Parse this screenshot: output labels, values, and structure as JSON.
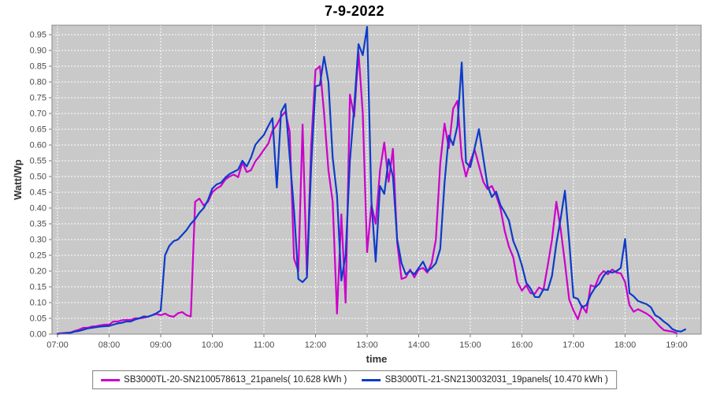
{
  "title": "7-9-2022",
  "colors": {
    "plot_bg": "#c9c9c9",
    "grid": "#ffffff",
    "border": "#888888",
    "tick": "#777777",
    "series1": "#cc00cc",
    "series2": "#0d3bc9"
  },
  "chart_data": {
    "type": "line",
    "title": "7-9-2022",
    "xlabel": "time",
    "ylabel": "Watt/Wp",
    "grid": "white dashed, both axes",
    "legend_position": "bottom",
    "ylim": [
      0,
      0.98
    ],
    "x_start_hour": 7,
    "x_step_minutes": 5,
    "x_ticks": [
      "07:00",
      "08:00",
      "09:00",
      "10:00",
      "11:00",
      "12:00",
      "13:00",
      "14:00",
      "15:00",
      "16:00",
      "17:00",
      "18:00",
      "19:00"
    ],
    "y_ticks": [
      "0.00",
      "0.05",
      "0.10",
      "0.15",
      "0.20",
      "0.25",
      "0.30",
      "0.35",
      "0.40",
      "0.45",
      "0.50",
      "0.55",
      "0.60",
      "0.65",
      "0.70",
      "0.75",
      "0.80",
      "0.85",
      "0.90",
      "0.95"
    ],
    "series": [
      {
        "name": "SB3000TL-20-SN2100578613_21panels( 10.628 kWh )",
        "color": "#cc00cc",
        "values": [
          0.002,
          0.003,
          0.004,
          0.005,
          0.01,
          0.014,
          0.02,
          0.02,
          0.024,
          0.025,
          0.028,
          0.03,
          0.03,
          0.04,
          0.04,
          0.044,
          0.045,
          0.045,
          0.05,
          0.05,
          0.052,
          0.055,
          0.06,
          0.064,
          0.06,
          0.065,
          0.058,
          0.055,
          0.066,
          0.07,
          0.06,
          0.056,
          0.42,
          0.43,
          0.408,
          0.42,
          0.45,
          0.462,
          0.47,
          0.49,
          0.5,
          0.506,
          0.498,
          0.545,
          0.514,
          0.52,
          0.548,
          0.565,
          0.585,
          0.604,
          0.645,
          0.664,
          0.69,
          0.706,
          0.64,
          0.24,
          0.2,
          0.665,
          0.185,
          0.6,
          0.838,
          0.85,
          0.7,
          0.52,
          0.42,
          0.065,
          0.38,
          0.1,
          0.76,
          0.69,
          0.895,
          0.7,
          0.26,
          0.41,
          0.35,
          0.52,
          0.608,
          0.483,
          0.588,
          0.29,
          0.175,
          0.18,
          0.205,
          0.18,
          0.205,
          0.21,
          0.195,
          0.225,
          0.3,
          0.54,
          0.668,
          0.59,
          0.715,
          0.74,
          0.56,
          0.5,
          0.548,
          0.585,
          0.535,
          0.484,
          0.46,
          0.47,
          0.44,
          0.4,
          0.327,
          0.277,
          0.243,
          0.165,
          0.138,
          0.155,
          0.13,
          0.128,
          0.148,
          0.14,
          0.218,
          0.3,
          0.42,
          0.335,
          0.226,
          0.11,
          0.075,
          0.047,
          0.09,
          0.068,
          0.155,
          0.15,
          0.185,
          0.2,
          0.19,
          0.205,
          0.195,
          0.193,
          0.165,
          0.092,
          0.071,
          0.079,
          0.072,
          0.065,
          0.055,
          0.04,
          0.025,
          0.013,
          0.01,
          0.008,
          0.003,
          null,
          null
        ]
      },
      {
        "name": "SB3000TL-21-SN2130032031_19panels( 10.470 kWh )",
        "color": "#0d3bc9",
        "values": [
          0.0,
          0.002,
          0.003,
          0.004,
          0.008,
          0.01,
          0.014,
          0.018,
          0.02,
          0.022,
          0.024,
          0.025,
          0.026,
          0.03,
          0.034,
          0.036,
          0.04,
          0.04,
          0.046,
          0.05,
          0.056,
          0.055,
          0.06,
          0.066,
          0.075,
          0.25,
          0.28,
          0.295,
          0.3,
          0.315,
          0.33,
          0.35,
          0.365,
          0.385,
          0.4,
          0.425,
          0.462,
          0.475,
          0.48,
          0.496,
          0.508,
          0.515,
          0.522,
          0.55,
          0.532,
          0.56,
          0.6,
          0.617,
          0.632,
          0.66,
          0.685,
          0.465,
          0.705,
          0.73,
          0.56,
          0.395,
          0.175,
          0.165,
          0.18,
          0.53,
          0.786,
          0.79,
          0.88,
          0.8,
          0.56,
          0.44,
          0.17,
          0.25,
          0.55,
          0.72,
          0.92,
          0.885,
          0.975,
          0.42,
          0.23,
          0.47,
          0.445,
          0.555,
          0.5,
          0.3,
          0.225,
          0.19,
          0.2,
          0.19,
          0.21,
          0.23,
          0.2,
          0.21,
          0.225,
          0.27,
          0.48,
          0.63,
          0.6,
          0.66,
          0.862,
          0.545,
          0.53,
          0.59,
          0.65,
          0.56,
          0.472,
          0.435,
          0.452,
          0.41,
          0.386,
          0.36,
          0.295,
          0.262,
          0.218,
          0.163,
          0.145,
          0.118,
          0.117,
          0.142,
          0.14,
          0.185,
          0.286,
          0.365,
          0.455,
          0.295,
          0.117,
          0.112,
          0.085,
          0.092,
          0.125,
          0.147,
          0.16,
          0.185,
          0.2,
          0.195,
          0.2,
          0.21,
          0.302,
          0.13,
          0.12,
          0.105,
          0.1,
          0.095,
          0.085,
          0.06,
          0.052,
          0.04,
          0.03,
          0.016,
          0.01,
          0.008,
          0.015
        ]
      }
    ]
  }
}
